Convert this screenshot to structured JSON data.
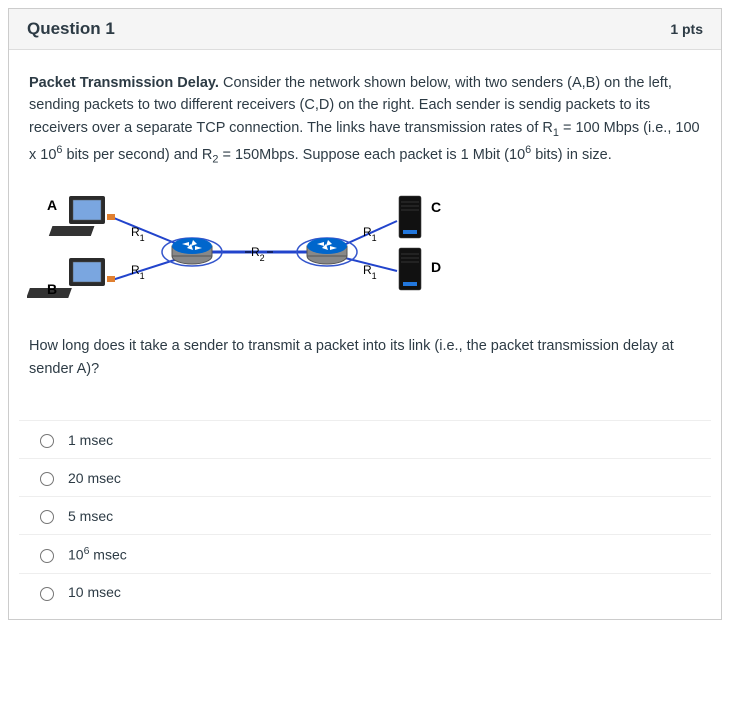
{
  "header": {
    "title": "Question 1",
    "points": "1 pts"
  },
  "body": {
    "bold_lead": "Packet Transmission Delay.",
    "para": " Consider the network shown below, with two senders (A,B) on the left, sending packets to two different receivers (C,D) on the right.  Each sender is sendig packets to its receivers over a separate TCP connection. The links have transmission rates of R",
    "para_after_r1sub": " = 100 Mbps (i.e., 100 x 10",
    "para_after_sup6_1": " bits per second) and R",
    "para_after_r2sub": " = 150Mbps.  Suppose each packet is 1 Mbit (10",
    "para_after_sup6_2": " bits) in size."
  },
  "diagram": {
    "labels": {
      "A": "A",
      "B": "B",
      "C": "C",
      "D": "D",
      "R1": "R",
      "R2": "R"
    },
    "sub1": "1",
    "sub2": "2",
    "colors": {
      "link": "#2244cc",
      "ellipse": "#3355cc",
      "router_top": "#0066cc",
      "router_body": "#888888",
      "monitor": "#2b2b2b",
      "screen": "#7aa6e0",
      "server": "#111111",
      "led": "#2277dd"
    }
  },
  "followup": "How long does it take a sender to transmit a packet into its link (i.e., the packet transmission delay at sender A)?",
  "options": [
    {
      "label": "1 msec",
      "has_sup": false
    },
    {
      "label": "20 msec",
      "has_sup": false
    },
    {
      "label": "5 msec",
      "has_sup": false
    },
    {
      "label_pre": "10",
      "sup": "6",
      "label_post": " msec",
      "has_sup": true
    },
    {
      "label": "10 msec",
      "has_sup": false
    }
  ]
}
